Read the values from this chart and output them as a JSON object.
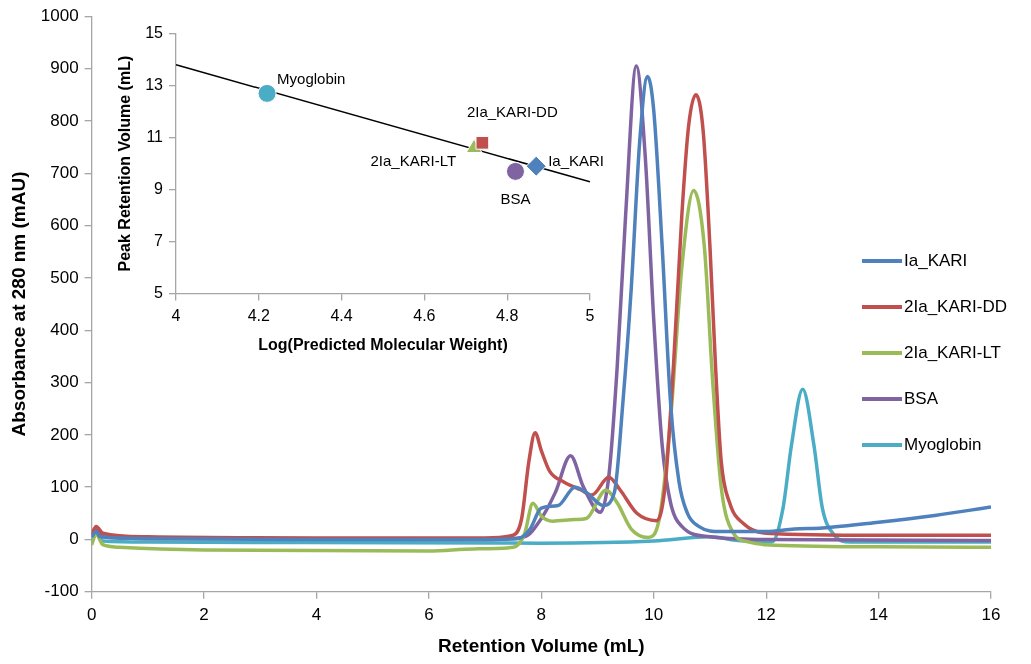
{
  "chart_data": [
    {
      "type": "line",
      "xlabel": "Retention Volume (mL)",
      "ylabel": "Absorbance at 280 nm (mAU)",
      "xlim": [
        0,
        16
      ],
      "xticks": [
        0,
        2,
        4,
        6,
        8,
        10,
        12,
        14,
        16
      ],
      "ylim": [
        -100,
        1000
      ],
      "yticks": [
        -100,
        0,
        100,
        200,
        300,
        400,
        500,
        600,
        700,
        800,
        900,
        1000
      ],
      "grid": false,
      "legend": "right",
      "series": [
        {
          "name": "Ia_KARI",
          "color": "#4f81bd",
          "x": [
            0,
            0.08,
            0.15,
            1,
            4,
            7,
            7.6,
            7.8,
            8.0,
            8.3,
            8.6,
            8.8,
            9.1,
            9.3,
            9.45,
            9.6,
            9.75,
            9.89,
            10.0,
            10.15,
            10.3,
            10.45,
            10.6,
            10.8,
            11.2,
            12,
            12.5,
            13,
            14,
            15,
            16
          ],
          "values": [
            5,
            15,
            5,
            2,
            0,
            0,
            2,
            20,
            60,
            65,
            100,
            90,
            65,
            90,
            260,
            480,
            760,
            885,
            820,
            560,
            260,
            110,
            50,
            25,
            15,
            15,
            20,
            22,
            33,
            46,
            62
          ]
        },
        {
          "name": "2Ia_KARI-DD",
          "color": "#c0504d",
          "x": [
            0,
            0.08,
            0.2,
            1,
            4,
            7,
            7.5,
            7.65,
            7.78,
            7.89,
            8.0,
            8.15,
            8.4,
            8.7,
            8.9,
            9.2,
            9.4,
            9.7,
            10.05,
            10.2,
            10.35,
            10.5,
            10.62,
            10.75,
            10.88,
            11.0,
            11.1,
            11.2,
            11.35,
            11.6,
            12,
            14,
            16
          ],
          "values": [
            10,
            25,
            12,
            5,
            3,
            3,
            8,
            40,
            150,
            204,
            170,
            130,
            110,
            95,
            85,
            119,
            95,
            50,
            36,
            100,
            330,
            620,
            790,
            850,
            780,
            560,
            330,
            150,
            70,
            30,
            12,
            8,
            8
          ]
        },
        {
          "name": "2Ia_KARI-LT",
          "color": "#9bbb59",
          "x": [
            0,
            0.08,
            0.2,
            0.5,
            2,
            6,
            6.8,
            7.5,
            7.7,
            7.85,
            8.0,
            8.2,
            8.6,
            8.8,
            9.15,
            9.35,
            9.6,
            9.9,
            10.1,
            10.3,
            10.5,
            10.71,
            10.9,
            11.05,
            11.2,
            11.4,
            11.7,
            12,
            14,
            16
          ],
          "values": [
            -10,
            10,
            -10,
            -15,
            -20,
            -22,
            -18,
            -15,
            10,
            69,
            45,
            35,
            38,
            40,
            94,
            70,
            20,
            4,
            40,
            230,
            520,
            667,
            560,
            300,
            100,
            15,
            -5,
            -10,
            -14,
            -15
          ]
        },
        {
          "name": "BSA",
          "color": "#8064a2",
          "x": [
            0,
            0.08,
            0.2,
            1,
            7,
            7.7,
            8.0,
            8.25,
            8.52,
            8.75,
            9.05,
            9.2,
            9.35,
            9.5,
            9.69,
            9.85,
            10.0,
            10.15,
            10.3,
            10.5,
            11,
            12,
            16
          ],
          "values": [
            5,
            18,
            5,
            2,
            0,
            5,
            40,
            90,
            160,
            100,
            52,
            120,
            330,
            620,
            905,
            730,
            420,
            180,
            70,
            25,
            5,
            0,
            -2
          ]
        },
        {
          "name": "Myoglobin",
          "color": "#4bacc6",
          "x": [
            0,
            0.08,
            0.2,
            1,
            8,
            10,
            11,
            11.5,
            12.1,
            12.3,
            12.45,
            12.65,
            12.85,
            13.0,
            13.2,
            13.5,
            16
          ],
          "values": [
            -5,
            12,
            -3,
            -5,
            -7,
            -3,
            5,
            -2,
            -5,
            60,
            180,
            287,
            180,
            60,
            10,
            -5,
            -5
          ]
        }
      ]
    },
    {
      "type": "scatter",
      "xlabel": "Log(Predicted Molecular Weight)",
      "ylabel": "Peak Retention Volume (mL)",
      "xlim": [
        4,
        5
      ],
      "xticks": [
        4,
        4.2,
        4.4,
        4.6,
        4.8,
        5
      ],
      "ylim": [
        5,
        15
      ],
      "yticks": [
        5,
        7,
        9,
        11,
        13,
        15
      ],
      "grid": false,
      "series": [
        {
          "name": "Myoglobin",
          "color": "#4bacc6",
          "marker": "circle",
          "x": [
            4.22
          ],
          "values": [
            12.7
          ]
        },
        {
          "name": "2Ia_KARI-DD",
          "color": "#c0504d",
          "marker": "square",
          "x": [
            4.74
          ],
          "values": [
            10.8
          ]
        },
        {
          "name": "2Ia_KARI-LT",
          "color": "#9bbb59",
          "marker": "triangle",
          "x": [
            4.72
          ],
          "values": [
            10.6
          ]
        },
        {
          "name": "BSA",
          "color": "#8064a2",
          "marker": "circle",
          "x": [
            4.82
          ],
          "values": [
            9.7
          ]
        },
        {
          "name": "Ia_KARI",
          "color": "#4f81bd",
          "marker": "diamond",
          "x": [
            4.87
          ],
          "values": [
            9.9
          ]
        },
        {
          "type": "line",
          "color": "#000000",
          "x": [
            4,
            5
          ],
          "values": [
            13.8,
            9.3
          ]
        }
      ]
    }
  ]
}
